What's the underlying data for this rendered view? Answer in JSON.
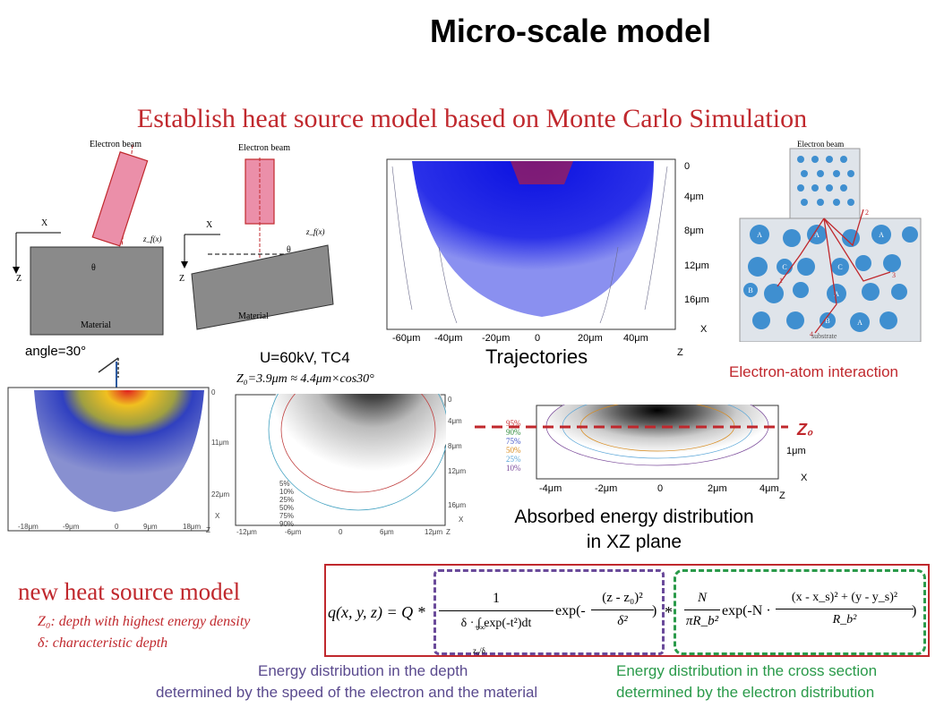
{
  "title": "Micro-scale model",
  "subtitle": "Establish heat source model based on Monte Carlo Simulation",
  "diagram1": {
    "beam": "Electron beam",
    "x": "X",
    "z": "Z",
    "theta": "θ",
    "zf": "z_f(x)",
    "material": "Material"
  },
  "diagram2": {
    "beam": "Electron beam",
    "x": "X",
    "z": "Z",
    "theta": "θ",
    "zf": "z_f(x)",
    "material": "Material"
  },
  "trajectories": {
    "caption": "Trajectories",
    "x_ticks": [
      "-60μm",
      "-40μm",
      "-20μm",
      "0",
      "20μm",
      "40μm"
    ],
    "y_ticks": [
      "0",
      "4μm",
      "8μm",
      "12μm",
      "16μm"
    ],
    "x_axis": "X",
    "z_axis": "Z"
  },
  "interaction": {
    "beam": "Electron beam",
    "substrate": "substrate",
    "caption": "Electron-atom interaction",
    "atom_label_a": "A",
    "atom_label_b": "B",
    "atom_label_c": "C",
    "path_numbers": [
      "1",
      "2",
      "3",
      "4"
    ]
  },
  "angle_label": "angle=30°",
  "sim_left": {
    "x_ticks": [
      "-18μm",
      "-9μm",
      "0",
      "9μm",
      "18μm"
    ],
    "y_ticks": [
      "0",
      "11μm",
      "22μm"
    ],
    "x_axis": "X",
    "z_axis": "Z"
  },
  "voltage_label": "U=60kV, TC4",
  "z0_formula": "Z₀=3.9μm ≈ 4.4μm×cos30°",
  "contour_mid": {
    "x_ticks": [
      "-12μm",
      "-6μm",
      "0",
      "6μm",
      "12μm"
    ],
    "y_ticks": [
      "0",
      "4μm",
      "8μm",
      "12μm",
      "16μm"
    ],
    "legend": [
      "5%",
      "10%",
      "25%",
      "50%",
      "75%",
      "90%"
    ],
    "x_axis": "X",
    "z_axis": "Z"
  },
  "contour_right": {
    "legend": [
      "95%",
      "90%",
      "75%",
      "50%",
      "25%",
      "10%"
    ],
    "legend_colors": [
      "#c8282c",
      "#2d8a3a",
      "#3b4fc6",
      "#d88a1a",
      "#5aa6d8",
      "#7a4a9a"
    ],
    "z0_label": "Z₀",
    "x_ticks": [
      "-4μm",
      "-2μm",
      "0",
      "2μm",
      "4μm"
    ],
    "y_ticks": [
      "0",
      "1μm"
    ],
    "x_axis": "X",
    "z_axis": "Z",
    "caption_line1": "Absorbed energy distribution",
    "caption_line2": "in XZ plane"
  },
  "new_model": {
    "heading": "new heat source model",
    "z0_desc": "Z₀: depth with highest energy density",
    "delta_desc": "δ: characteristic depth"
  },
  "equation": {
    "lhs": "q(x, y, z) = Q *",
    "num1": "1",
    "den1": "δ · ∫ exp(-t²)dt",
    "int_upper": "+∞",
    "int_lower": "z₀/δ",
    "exp1": "exp(-",
    "frac2_num": "(z - z₀)²",
    "frac2_den": "δ²",
    "close1": ")",
    "mult": "*",
    "n_num": "N",
    "n_den": "πR_b²",
    "exp2": "exp(-N ·",
    "frac3_num": "(x - x_s)² + (y - y_s)²",
    "frac3_den": "R_b²",
    "close2": ")"
  },
  "bottom": {
    "depth_line1": "Energy distribution in the depth",
    "depth_line2": "determined by the speed of the electron and the material",
    "cross_line1": "Energy distribution in the cross section",
    "cross_line2": "determined by the electron distribution"
  },
  "colors": {
    "red": "#c0282d",
    "purple": "#6a4a9a",
    "green": "#2a9a4a",
    "pink": "#e88aa4",
    "gray": "#8a8a8a",
    "atom": "#3f8fd0"
  }
}
